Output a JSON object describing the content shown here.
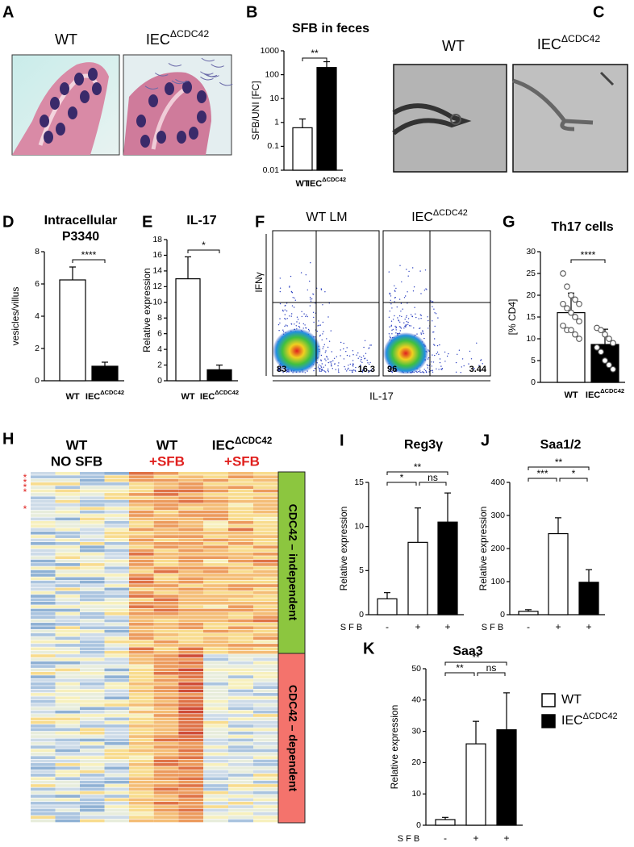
{
  "figure": {
    "A": {
      "letter": "A",
      "labels": [
        "WT",
        "IECΔCDC42"
      ]
    },
    "C": {
      "letter": "C",
      "labels": [
        "WT",
        "IECΔCDC42"
      ]
    },
    "F": {
      "letter": "F",
      "labels": [
        "WT LM",
        "IECΔCDC42"
      ],
      "y_label": "IFNγ",
      "x_label": "IL-17",
      "quadrants": [
        [
          83,
          16.3
        ],
        [
          96,
          3.44
        ]
      ]
    },
    "H": {
      "letter": "H",
      "groups": [
        [
          "WT",
          "NO SFB"
        ],
        [
          "WT",
          "+SFB"
        ],
        [
          "IECΔCDC42",
          "+SFB"
        ]
      ],
      "clusters": [
        "CDC42 – independent",
        "CDC42 – dependent"
      ],
      "row_marks": [
        "*",
        "*",
        "*",
        "*",
        "*"
      ]
    }
  },
  "chart_data": [
    {
      "panel": "B",
      "type": "bar",
      "title": [
        "SFB in feces"
      ],
      "y_label": "SFB/UNI [FC]",
      "categories": [
        "WT",
        "IECΔCDC42"
      ],
      "values": [
        0.6,
        200
      ],
      "errors": [
        0.8,
        150
      ],
      "colors": [
        "#ffffff",
        "#000000"
      ],
      "log": true,
      "ylim": [
        0.01,
        1000
      ],
      "yticks": [
        0.01,
        0.1,
        1,
        10,
        100,
        1000
      ],
      "brackets": [
        {
          "from": 0,
          "to": 1,
          "label": "**"
        }
      ]
    },
    {
      "panel": "D",
      "type": "bar",
      "title": [
        "Intracellular",
        "P3340"
      ],
      "y_label": "vesicles/villus",
      "categories": [
        "WT",
        "IECΔCDC42"
      ],
      "values": [
        6.25,
        0.9
      ],
      "errors": [
        0.8,
        0.25
      ],
      "colors": [
        "#ffffff",
        "#000000"
      ],
      "ylim": [
        0,
        8
      ],
      "yticks": [
        0,
        2,
        4,
        6,
        8
      ],
      "brackets": [
        {
          "from": 0,
          "to": 1,
          "label": "****"
        }
      ]
    },
    {
      "panel": "E",
      "type": "bar",
      "title": [
        "IL-17"
      ],
      "y_label": "Relative expression",
      "categories": [
        "WT",
        "IECΔCDC42"
      ],
      "values": [
        13,
        1.4
      ],
      "errors": [
        2.8,
        0.6
      ],
      "colors": [
        "#ffffff",
        "#000000"
      ],
      "ylim": [
        0,
        18
      ],
      "yticks": [
        0,
        2,
        4,
        6,
        8,
        10,
        12,
        14,
        16,
        18
      ],
      "brackets": [
        {
          "from": 0,
          "to": 1,
          "label": "*"
        }
      ]
    },
    {
      "panel": "G",
      "type": "bar",
      "title": [
        "Th17 cells"
      ],
      "y_label": "[% CD4]",
      "categories": [
        "WT",
        "IECΔCDC42"
      ],
      "values": [
        16,
        8.7
      ],
      "errors": [
        4.5,
        3.5
      ],
      "colors": [
        "#ffffff",
        "#000000"
      ],
      "ylim": [
        0,
        30
      ],
      "yticks": [
        0,
        5,
        10,
        15,
        20,
        25,
        30
      ],
      "brackets": [
        {
          "from": 0,
          "to": 1,
          "label": "****"
        }
      ],
      "points": [
        [
          25,
          22,
          20,
          19,
          18,
          18,
          17,
          16,
          15,
          14,
          13,
          12,
          12,
          11,
          10
        ],
        [
          12.5,
          12,
          11,
          10,
          9,
          8,
          7,
          5,
          4,
          3
        ]
      ]
    },
    {
      "panel": "I",
      "type": "bar",
      "title": [
        "Reg3γ"
      ],
      "y_label": "Relative expression",
      "x_label": "SFB",
      "categories": [
        "-",
        "+",
        "+"
      ],
      "values": [
        1.8,
        8.2,
        10.5
      ],
      "errors": [
        0.7,
        3.9,
        3.3
      ],
      "colors": [
        "#ffffff",
        "#ffffff",
        "#000000"
      ],
      "ylim": [
        0,
        15
      ],
      "yticks": [
        0,
        5,
        10,
        15
      ],
      "brackets": [
        {
          "from": 0,
          "to": 1,
          "label": "*"
        },
        {
          "from": 1,
          "to": 2,
          "label": "ns"
        },
        {
          "from": 0,
          "to": 2,
          "label": "**"
        }
      ]
    },
    {
      "panel": "J",
      "type": "bar",
      "title": [
        "Saa1/2"
      ],
      "y_label": "Relative expression",
      "x_label": "SFB",
      "categories": [
        "-",
        "+",
        "+"
      ],
      "values": [
        10,
        245,
        98
      ],
      "errors": [
        5,
        48,
        38
      ],
      "colors": [
        "#ffffff",
        "#ffffff",
        "#000000"
      ],
      "ylim": [
        0,
        400
      ],
      "yticks": [
        0,
        100,
        200,
        300,
        400
      ],
      "brackets": [
        {
          "from": 0,
          "to": 1,
          "label": "***"
        },
        {
          "from": 1,
          "to": 2,
          "label": "*"
        },
        {
          "from": 0,
          "to": 2,
          "label": "**"
        }
      ]
    },
    {
      "panel": "K",
      "type": "bar",
      "title": [
        "Saa3"
      ],
      "y_label": "Relative expression",
      "x_label": "SFB",
      "categories": [
        "-",
        "+",
        "+"
      ],
      "values": [
        1.8,
        26,
        30.5
      ],
      "errors": [
        0.7,
        7.2,
        11.8
      ],
      "colors": [
        "#ffffff",
        "#ffffff",
        "#000000"
      ],
      "ylim": [
        0,
        50
      ],
      "yticks": [
        0,
        10,
        20,
        30,
        40,
        50
      ],
      "brackets": [
        {
          "from": 0,
          "to": 1,
          "label": "**"
        },
        {
          "from": 1,
          "to": 2,
          "label": "ns"
        },
        {
          "from": 0,
          "to": 2,
          "label": "**"
        }
      ],
      "legend": [
        {
          "name": "WT",
          "color": "#ffffff"
        },
        {
          "name": "IECΔCDC42",
          "color": "#000000"
        }
      ]
    }
  ]
}
